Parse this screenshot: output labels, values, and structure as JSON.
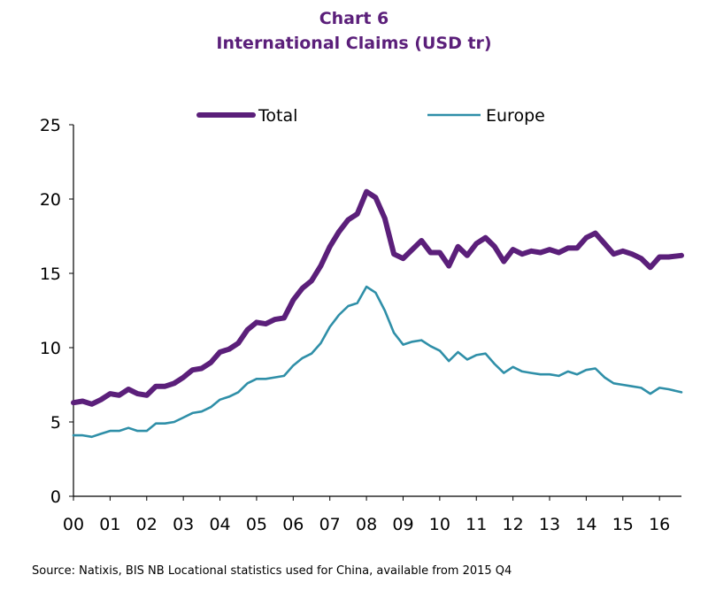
{
  "header": {
    "chart_number": "Chart 6",
    "title": "International Claims (USD tr)"
  },
  "footer": {
    "source": "Source: Natixis, BIS  NB Locational statistics used for China, available from 2015 Q4"
  },
  "colors": {
    "total": "#5b1f7a",
    "europe": "#2f8fa8",
    "title": "#5b1f7a",
    "axis": "#000000"
  },
  "chart_data": {
    "type": "line",
    "title": "International Claims (USD tr)",
    "xlabel": "",
    "ylabel": "",
    "ylim": [
      0,
      25
    ],
    "yticks": [
      "0",
      "5",
      "10",
      "15",
      "20",
      "25"
    ],
    "categories": [
      "00",
      "01",
      "02",
      "03",
      "04",
      "05",
      "06",
      "07",
      "08",
      "09",
      "10",
      "11",
      "12",
      "13",
      "14",
      "15",
      "16"
    ],
    "xlim": [
      0,
      16.6
    ],
    "grid": false,
    "legend_position": "top",
    "series": [
      {
        "name": "Total",
        "x": [
          0,
          0.25,
          0.5,
          0.75,
          1,
          1.25,
          1.5,
          1.75,
          2,
          2.25,
          2.5,
          2.75,
          3,
          3.25,
          3.5,
          3.75,
          4,
          4.25,
          4.5,
          4.75,
          5,
          5.25,
          5.5,
          5.75,
          6,
          6.25,
          6.5,
          6.75,
          7,
          7.25,
          7.5,
          7.75,
          8,
          8.25,
          8.5,
          8.75,
          9,
          9.25,
          9.5,
          9.75,
          10,
          10.25,
          10.5,
          10.75,
          11,
          11.25,
          11.5,
          11.75,
          12,
          12.25,
          12.5,
          12.75,
          13,
          13.25,
          13.5,
          13.75,
          14,
          14.25,
          14.5,
          14.75,
          15,
          15.25,
          15.5,
          15.75,
          16,
          16.25,
          16.6
        ],
        "values": [
          6.3,
          6.4,
          6.2,
          6.5,
          6.9,
          6.8,
          7.2,
          6.9,
          6.8,
          7.4,
          7.4,
          7.6,
          8.0,
          8.5,
          8.6,
          9.0,
          9.7,
          9.9,
          10.3,
          11.2,
          11.7,
          11.6,
          11.9,
          12.0,
          13.2,
          14.0,
          14.5,
          15.5,
          16.8,
          17.8,
          18.6,
          19.0,
          20.5,
          20.1,
          18.7,
          16.3,
          16.0,
          16.6,
          17.2,
          16.4,
          16.4,
          15.5,
          16.8,
          16.2,
          17.0,
          17.4,
          16.8,
          15.8,
          16.6,
          16.3,
          16.5,
          16.4,
          16.6,
          16.4,
          16.7,
          16.7,
          17.4,
          17.7,
          17.0,
          16.3,
          16.5,
          16.3,
          16.0,
          15.4,
          16.1,
          16.1,
          16.2
        ]
      },
      {
        "name": "Europe",
        "x": [
          0,
          0.25,
          0.5,
          0.75,
          1,
          1.25,
          1.5,
          1.75,
          2,
          2.25,
          2.5,
          2.75,
          3,
          3.25,
          3.5,
          3.75,
          4,
          4.25,
          4.5,
          4.75,
          5,
          5.25,
          5.5,
          5.75,
          6,
          6.25,
          6.5,
          6.75,
          7,
          7.25,
          7.5,
          7.75,
          8,
          8.25,
          8.5,
          8.75,
          9,
          9.25,
          9.5,
          9.75,
          10,
          10.25,
          10.5,
          10.75,
          11,
          11.25,
          11.5,
          11.75,
          12,
          12.25,
          12.5,
          12.75,
          13,
          13.25,
          13.5,
          13.75,
          14,
          14.25,
          14.5,
          14.75,
          15,
          15.25,
          15.5,
          15.75,
          16,
          16.25,
          16.6
        ],
        "values": [
          4.1,
          4.1,
          4.0,
          4.2,
          4.4,
          4.4,
          4.6,
          4.4,
          4.4,
          4.9,
          4.9,
          5.0,
          5.3,
          5.6,
          5.7,
          6.0,
          6.5,
          6.7,
          7.0,
          7.6,
          7.9,
          7.9,
          8.0,
          8.1,
          8.8,
          9.3,
          9.6,
          10.3,
          11.4,
          12.2,
          12.8,
          13.0,
          14.1,
          13.7,
          12.5,
          11.0,
          10.2,
          10.4,
          10.5,
          10.1,
          9.8,
          9.1,
          9.7,
          9.2,
          9.5,
          9.6,
          8.9,
          8.3,
          8.7,
          8.4,
          8.3,
          8.2,
          8.2,
          8.1,
          8.4,
          8.2,
          8.5,
          8.6,
          8.0,
          7.6,
          7.5,
          7.4,
          7.3,
          6.9,
          7.3,
          7.2,
          7.0
        ]
      }
    ]
  }
}
